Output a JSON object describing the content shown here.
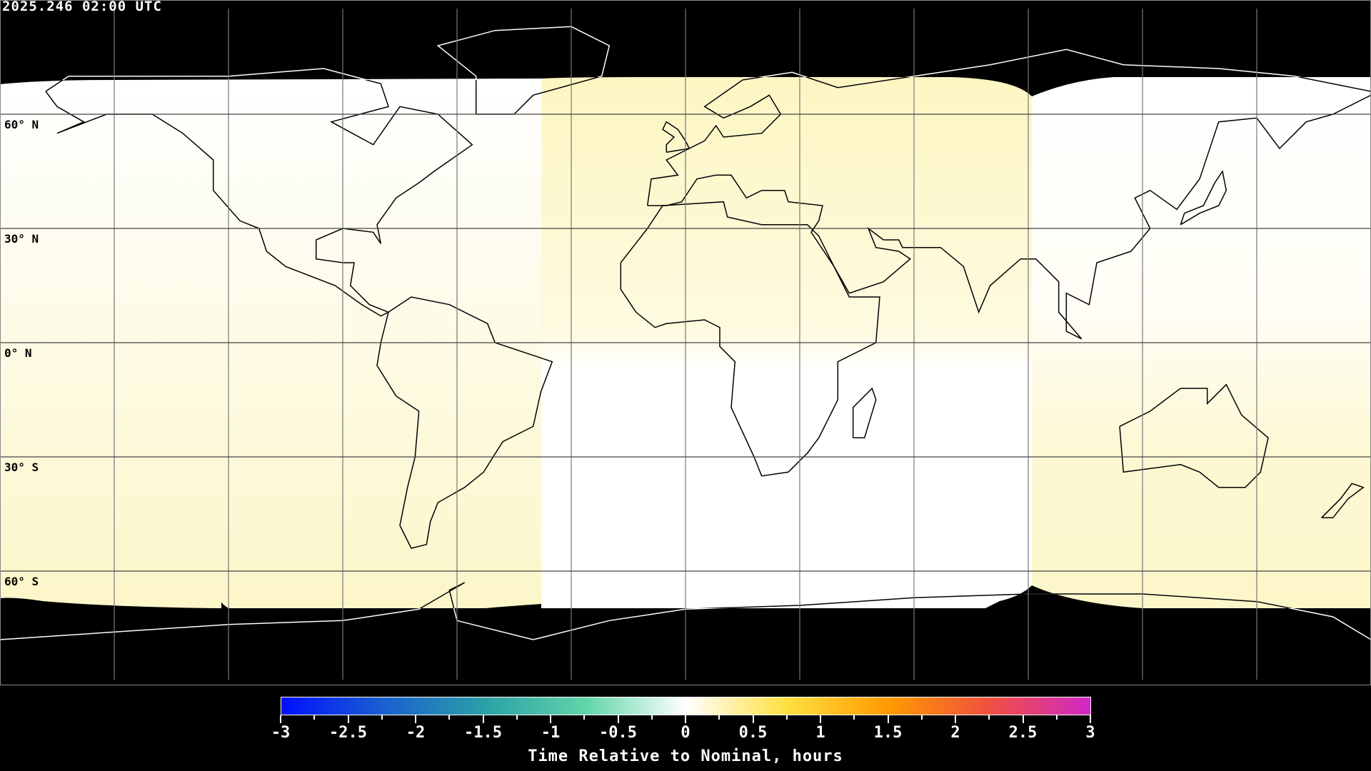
{
  "header": {
    "timestamp": "2025.246 02:00 UTC"
  },
  "map": {
    "projection": "equirectangular",
    "gridline_spacing_degrees": 30,
    "lat_labels": [
      "60° N",
      "30° N",
      "0° N",
      "30° S",
      "60° S"
    ],
    "background_color": "#000000",
    "coverage_colors": {
      "nominal": "#ffffff",
      "slightly_late": "#fdf8cc"
    }
  },
  "colorbar": {
    "title": "Time Relative to Nominal, hours",
    "min": -3,
    "max": 3,
    "tick_labels": [
      "-3",
      "-2.5",
      "-2",
      "-1.5",
      "-1",
      "-0.5",
      "0",
      "0.5",
      "1",
      "1.5",
      "2",
      "2.5",
      "3"
    ],
    "colors": [
      "#0010ff",
      "#1a5fd0",
      "#2aa0a8",
      "#60d4a8",
      "#ffffff",
      "#ffe040",
      "#ff9a00",
      "#f05040",
      "#d028c8"
    ]
  }
}
